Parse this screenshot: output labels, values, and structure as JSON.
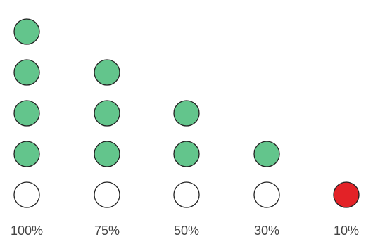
{
  "chart_data": {
    "type": "scatter",
    "categories": [
      "100%",
      "75%",
      "50%",
      "30%",
      "10%"
    ],
    "values": [
      4,
      3,
      2,
      1,
      0
    ],
    "series": [
      {
        "values": [
          4,
          3,
          2,
          1,
          0
        ]
      }
    ],
    "ylim": [
      0,
      5
    ],
    "grid": false,
    "legend": "none",
    "colors": {
      "filled": "#63c58c",
      "empty": "#ffffff",
      "last": "#e32227",
      "outline": "#222222",
      "label": "#444444"
    }
  }
}
